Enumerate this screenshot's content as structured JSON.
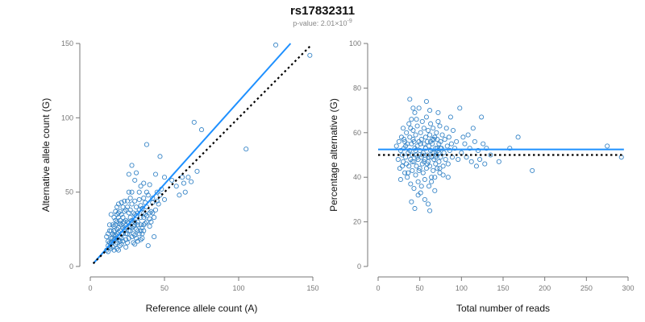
{
  "header": {
    "title": "rs17832311",
    "subtitle_prefix": "p-value: 2.01×10",
    "subtitle_exponent": "-9"
  },
  "colors": {
    "points": "#3a87c8",
    "fit_line": "#1e90ff",
    "ref_line": "#000000",
    "axis": "#777777",
    "tick_text": "#777777",
    "label_text": "#111111"
  },
  "chart_data": [
    {
      "type": "scatter",
      "xlabel": "Reference allele count (A)",
      "ylabel": "Alternative allele count (G)",
      "xlim": [
        0,
        150
      ],
      "ylim": [
        0,
        150
      ],
      "xticks": [
        0,
        50,
        100,
        150
      ],
      "yticks": [
        0,
        50,
        100,
        150
      ],
      "fit_line": {
        "x": [
          2,
          135
        ],
        "y": [
          2,
          150
        ]
      },
      "reference_line": {
        "x": [
          2,
          148
        ],
        "y": [
          2,
          148
        ]
      },
      "points": [
        [
          12,
          14
        ],
        [
          11,
          20
        ],
        [
          13,
          24
        ],
        [
          12,
          17
        ],
        [
          14,
          12
        ],
        [
          15,
          22
        ],
        [
          15,
          19
        ],
        [
          16,
          27
        ],
        [
          17,
          15
        ],
        [
          18,
          30
        ],
        [
          14,
          19
        ],
        [
          13,
          13
        ],
        [
          16,
          11
        ],
        [
          18,
          22
        ],
        [
          19,
          18
        ],
        [
          20,
          24
        ],
        [
          21,
          28
        ],
        [
          21,
          15
        ],
        [
          22,
          33
        ],
        [
          17,
          37
        ],
        [
          19,
          42
        ],
        [
          20,
          20
        ],
        [
          22,
          26
        ],
        [
          23,
          30
        ],
        [
          24,
          18
        ],
        [
          24,
          13
        ],
        [
          25,
          22
        ],
        [
          26,
          36
        ],
        [
          25,
          40
        ],
        [
          27,
          27
        ],
        [
          28,
          31
        ],
        [
          28,
          20
        ],
        [
          29,
          16
        ],
        [
          30,
          44
        ],
        [
          30,
          35
        ],
        [
          31,
          25
        ],
        [
          32,
          30
        ],
        [
          33,
          38
        ],
        [
          34,
          28
        ],
        [
          35,
          22
        ],
        [
          36,
          33
        ],
        [
          36,
          46
        ],
        [
          38,
          40
        ],
        [
          39,
          48
        ],
        [
          40,
          36
        ],
        [
          41,
          30
        ],
        [
          42,
          43
        ],
        [
          43,
          20
        ],
        [
          45,
          50
        ],
        [
          44,
          38
        ],
        [
          18,
          12
        ],
        [
          19,
          26
        ],
        [
          20,
          14
        ],
        [
          21,
          35
        ],
        [
          22,
          22
        ],
        [
          23,
          44
        ],
        [
          24,
          26
        ],
        [
          25,
          30
        ],
        [
          26,
          19
        ],
        [
          27,
          24
        ],
        [
          27,
          46
        ],
        [
          28,
          50
        ],
        [
          29,
          27
        ],
        [
          30,
          21
        ],
        [
          31,
          40
        ],
        [
          32,
          17
        ],
        [
          33,
          50
        ],
        [
          34,
          33
        ],
        [
          35,
          26
        ],
        [
          37,
          43
        ],
        [
          15,
          16
        ],
        [
          16,
          24
        ],
        [
          17,
          21
        ],
        [
          18,
          16
        ],
        [
          19,
          33
        ],
        [
          20,
          29
        ],
        [
          21,
          22
        ],
        [
          22,
          17
        ],
        [
          23,
          37
        ],
        [
          24,
          31
        ],
        [
          12,
          22
        ],
        [
          13,
          16
        ],
        [
          14,
          24
        ],
        [
          15,
          13
        ],
        [
          16,
          18
        ],
        [
          17,
          28
        ],
        [
          18,
          25
        ],
        [
          19,
          11
        ],
        [
          20,
          31
        ],
        [
          21,
          19
        ],
        [
          25,
          44
        ],
        [
          26,
          50
        ],
        [
          27,
          38
        ],
        [
          28,
          42
        ],
        [
          29,
          22
        ],
        [
          30,
          28
        ],
        [
          31,
          34
        ],
        [
          32,
          24
        ],
        [
          33,
          45
        ],
        [
          34,
          41
        ],
        [
          28,
          68
        ],
        [
          26,
          62
        ],
        [
          30,
          58
        ],
        [
          34,
          54
        ],
        [
          38,
          50
        ],
        [
          40,
          55
        ],
        [
          44,
          62
        ],
        [
          48,
          52
        ],
        [
          47,
          74
        ],
        [
          38,
          82
        ],
        [
          31,
          63
        ],
        [
          36,
          56
        ],
        [
          42,
          46
        ],
        [
          46,
          42
        ],
        [
          50,
          60
        ],
        [
          55,
          58
        ],
        [
          58,
          54
        ],
        [
          60,
          48
        ],
        [
          62,
          60
        ],
        [
          63,
          56
        ],
        [
          64,
          50
        ],
        [
          66,
          60
        ],
        [
          68,
          57
        ],
        [
          72,
          64
        ],
        [
          75,
          92
        ],
        [
          70,
          97
        ],
        [
          105,
          79
        ],
        [
          125,
          149
        ],
        [
          148,
          142
        ],
        [
          18,
          40
        ],
        [
          20,
          37
        ],
        [
          22,
          40
        ],
        [
          24,
          38
        ],
        [
          35,
          19
        ],
        [
          36,
          24
        ],
        [
          37,
          29
        ],
        [
          38,
          34
        ],
        [
          39,
          14
        ],
        [
          41,
          37
        ],
        [
          43,
          33
        ],
        [
          45,
          44
        ],
        [
          47,
          48
        ],
        [
          50,
          45
        ],
        [
          15,
          28
        ],
        [
          14,
          35
        ],
        [
          16,
          33
        ],
        [
          17,
          31
        ],
        [
          19,
          36
        ],
        [
          21,
          43
        ],
        [
          23,
          25
        ],
        [
          25,
          16
        ],
        [
          26,
          29
        ],
        [
          27,
          33
        ],
        [
          29,
          36
        ],
        [
          30,
          15
        ],
        [
          31,
          19
        ],
        [
          32,
          36
        ],
        [
          33,
          22
        ],
        [
          34,
          18
        ],
        [
          35,
          39
        ],
        [
          36,
          36
        ],
        [
          37,
          35
        ],
        [
          40,
          27
        ],
        [
          11,
          11
        ],
        [
          12,
          10
        ],
        [
          13,
          28
        ],
        [
          14,
          16
        ],
        [
          16,
          21
        ],
        [
          17,
          19
        ],
        [
          18,
          35
        ],
        [
          19,
          23
        ],
        [
          20,
          17
        ],
        [
          22,
          29
        ],
        [
          24,
          22
        ],
        [
          26,
          24
        ],
        [
          28,
          26
        ],
        [
          30,
          30
        ],
        [
          32,
          28
        ],
        [
          34,
          24
        ],
        [
          36,
          28
        ],
        [
          38,
          30
        ],
        [
          40,
          32
        ],
        [
          42,
          36
        ]
      ]
    },
    {
      "type": "scatter",
      "xlabel": "Total number of reads",
      "ylabel": "Percentage alternative (G)",
      "xlim": [
        0,
        300
      ],
      "ylim": [
        0,
        100
      ],
      "xticks": [
        0,
        50,
        100,
        150,
        200,
        250,
        300
      ],
      "yticks": [
        0,
        20,
        40,
        60,
        80,
        100
      ],
      "fit_line": {
        "x": [
          0,
          295
        ],
        "y": [
          52.5,
          52.5
        ]
      },
      "reference_line": {
        "x": [
          0,
          295
        ],
        "y": [
          50,
          50
        ]
      },
      "points": [
        [
          22,
          54
        ],
        [
          24,
          48
        ],
        [
          25,
          56
        ],
        [
          26,
          44
        ],
        [
          27,
          52
        ],
        [
          28,
          58
        ],
        [
          29,
          50
        ],
        [
          30,
          47
        ],
        [
          30,
          62
        ],
        [
          31,
          53
        ],
        [
          32,
          42
        ],
        [
          32,
          56
        ],
        [
          33,
          49
        ],
        [
          34,
          60
        ],
        [
          34,
          46
        ],
        [
          35,
          55
        ],
        [
          35,
          40
        ],
        [
          36,
          51
        ],
        [
          37,
          64
        ],
        [
          37,
          45
        ],
        [
          38,
          58
        ],
        [
          38,
          52
        ],
        [
          39,
          37
        ],
        [
          39,
          48
        ],
        [
          40,
          66
        ],
        [
          40,
          55
        ],
        [
          41,
          43
        ],
        [
          41,
          50
        ],
        [
          42,
          61
        ],
        [
          42,
          57
        ],
        [
          43,
          47
        ],
        [
          43,
          35
        ],
        [
          44,
          53
        ],
        [
          44,
          69
        ],
        [
          45,
          41
        ],
        [
          45,
          59
        ],
        [
          46,
          50
        ],
        [
          46,
          45
        ],
        [
          47,
          63
        ],
        [
          47,
          54
        ],
        [
          48,
          38
        ],
        [
          48,
          48
        ],
        [
          49,
          56
        ],
        [
          49,
          71
        ],
        [
          50,
          52
        ],
        [
          50,
          44
        ],
        [
          51,
          60
        ],
        [
          51,
          33
        ],
        [
          52,
          49
        ],
        [
          52,
          57
        ],
        [
          53,
          46
        ],
        [
          53,
          65
        ],
        [
          54,
          51
        ],
        [
          54,
          42
        ],
        [
          55,
          55
        ],
        [
          55,
          62
        ],
        [
          56,
          48
        ],
        [
          56,
          39
        ],
        [
          57,
          58
        ],
        [
          57,
          53
        ],
        [
          58,
          44
        ],
        [
          58,
          67
        ],
        [
          59,
          50
        ],
        [
          59,
          56
        ],
        [
          60,
          47
        ],
        [
          60,
          61
        ],
        [
          61,
          54
        ],
        [
          61,
          36
        ],
        [
          62,
          59
        ],
        [
          62,
          45
        ],
        [
          63,
          52
        ],
        [
          63,
          64
        ],
        [
          64,
          49
        ],
        [
          64,
          40
        ],
        [
          65,
          57
        ],
        [
          65,
          55
        ],
        [
          66,
          43
        ],
        [
          66,
          62
        ],
        [
          67,
          51
        ],
        [
          67,
          48
        ],
        [
          68,
          58
        ],
        [
          68,
          34
        ],
        [
          69,
          53
        ],
        [
          69,
          46
        ],
        [
          70,
          60
        ],
        [
          70,
          50
        ],
        [
          71,
          44
        ],
        [
          71,
          57
        ],
        [
          72,
          65
        ],
        [
          72,
          52
        ],
        [
          73,
          47
        ],
        [
          73,
          55
        ],
        [
          74,
          63
        ],
        [
          74,
          42
        ],
        [
          75,
          56
        ],
        [
          75,
          49
        ],
        [
          76,
          53
        ],
        [
          77,
          59
        ],
        [
          78,
          45
        ],
        [
          79,
          51
        ],
        [
          80,
          57
        ],
        [
          81,
          48
        ],
        [
          82,
          62
        ],
        [
          83,
          54
        ],
        [
          84,
          46
        ],
        [
          85,
          58
        ],
        [
          86,
          52
        ],
        [
          87,
          67
        ],
        [
          88,
          55
        ],
        [
          89,
          49
        ],
        [
          90,
          61
        ],
        [
          92,
          53
        ],
        [
          94,
          56
        ],
        [
          96,
          48
        ],
        [
          98,
          71
        ],
        [
          100,
          51
        ],
        [
          102,
          58
        ],
        [
          104,
          55
        ],
        [
          106,
          49
        ],
        [
          108,
          59
        ],
        [
          110,
          53
        ],
        [
          112,
          47
        ],
        [
          114,
          62
        ],
        [
          116,
          56
        ],
        [
          118,
          45
        ],
        [
          120,
          52
        ],
        [
          122,
          48
        ],
        [
          124,
          67
        ],
        [
          126,
          55
        ],
        [
          128,
          46
        ],
        [
          130,
          53
        ],
        [
          135,
          50
        ],
        [
          145,
          47
        ],
        [
          158,
          53
        ],
        [
          168,
          58
        ],
        [
          185,
          43
        ],
        [
          275,
          54
        ],
        [
          292,
          49
        ],
        [
          38,
          75
        ],
        [
          42,
          71
        ],
        [
          46,
          66
        ],
        [
          58,
          74
        ],
        [
          62,
          70
        ],
        [
          72,
          69
        ],
        [
          44,
          26
        ],
        [
          48,
          32
        ],
        [
          52,
          36
        ],
        [
          56,
          30
        ],
        [
          60,
          28
        ],
        [
          62,
          25
        ],
        [
          40,
          29
        ],
        [
          64,
          38
        ],
        [
          68,
          40
        ],
        [
          74,
          44
        ],
        [
          78,
          41
        ],
        [
          84,
          40
        ],
        [
          36,
          42
        ],
        [
          33,
          54
        ],
        [
          29,
          45
        ],
        [
          27,
          39
        ],
        [
          31,
          57
        ],
        [
          39,
          62
        ],
        [
          41,
          47
        ],
        [
          43,
          56
        ],
        [
          45,
          52
        ],
        [
          47,
          49
        ],
        [
          49,
          43
        ],
        [
          51,
          55
        ],
        [
          53,
          50
        ],
        [
          55,
          47
        ],
        [
          57,
          53
        ],
        [
          59,
          46
        ],
        [
          61,
          49
        ],
        [
          63,
          56
        ],
        [
          65,
          51
        ],
        [
          67,
          57
        ],
        [
          69,
          49
        ],
        [
          71,
          53
        ],
        [
          73,
          51
        ],
        [
          75,
          53
        ]
      ]
    }
  ]
}
